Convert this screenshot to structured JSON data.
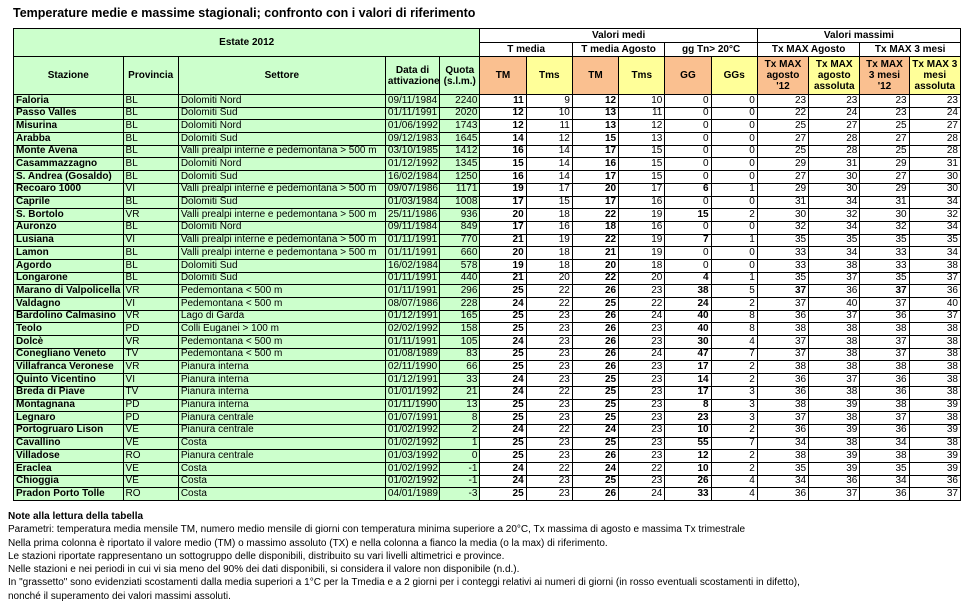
{
  "title": "Temperature medie e massime stagionali; confronto con i valori di riferimento",
  "colors": {
    "header_green": "#ccffcc",
    "header_orange": "#fac090",
    "header_yellow": "#ffff99",
    "border": "#000000"
  },
  "table": {
    "season_header": "Estate 2012",
    "groups": [
      "Valori medi",
      "Valori massimi"
    ],
    "subgroups": [
      "T media",
      "T media Agosto",
      "gg Tn> 20°C",
      "Tx MAX Agosto",
      "Tx MAX 3 mesi"
    ],
    "info_columns": [
      "Stazione",
      "Provincia",
      "Settore",
      "Data di attivazione",
      "Quota (s.l.m.)"
    ],
    "value_columns": [
      "TM",
      "Tms",
      "TM",
      "Tms",
      "GG",
      "GGs",
      "Tx MAX agosto '12",
      "Tx MAX agosto assoluta",
      "Tx MAX 3 mesi '12",
      "Tx MAX 3 mesi assoluta"
    ],
    "rows": [
      {
        "stazione": "Faloria",
        "provincia": "BL",
        "settore": "Dolomiti Nord",
        "data_attivazione": "09/11/1984",
        "quota": "2240",
        "values": [
          11,
          9,
          12,
          10,
          0,
          0,
          23,
          23,
          23,
          23
        ]
      },
      {
        "stazione": "Passo Valles",
        "provincia": "BL",
        "settore": "Dolomiti Sud",
        "data_attivazione": "01/11/1991",
        "quota": "2020",
        "values": [
          12,
          10,
          13,
          11,
          0,
          0,
          22,
          24,
          23,
          24
        ]
      },
      {
        "stazione": "Misurina",
        "provincia": "BL",
        "settore": "Dolomiti Nord",
        "data_attivazione": "01/06/1992",
        "quota": "1743",
        "values": [
          12,
          11,
          13,
          12,
          0,
          0,
          25,
          27,
          25,
          27
        ]
      },
      {
        "stazione": "Arabba",
        "provincia": "BL",
        "settore": "Dolomiti Sud",
        "data_attivazione": "09/12/1983",
        "quota": "1645",
        "values": [
          14,
          12,
          15,
          13,
          0,
          0,
          27,
          28,
          27,
          28
        ]
      },
      {
        "stazione": "Monte Avena",
        "provincia": "BL",
        "settore": "Valli prealpi interne e pedemontana > 500 m",
        "data_attivazione": "03/10/1985",
        "quota": "1412",
        "values": [
          16,
          14,
          17,
          15,
          0,
          0,
          25,
          28,
          25,
          28
        ]
      },
      {
        "stazione": "Casammazzagno",
        "provincia": "BL",
        "settore": "Dolomiti Nord",
        "data_attivazione": "01/12/1992",
        "quota": "1345",
        "values": [
          15,
          14,
          16,
          15,
          0,
          0,
          29,
          31,
          29,
          31
        ]
      },
      {
        "stazione": "S. Andrea (Gosaldo)",
        "provincia": "BL",
        "settore": "Dolomiti Sud",
        "data_attivazione": "16/02/1984",
        "quota": "1250",
        "values": [
          16,
          14,
          17,
          15,
          0,
          0,
          27,
          30,
          27,
          30
        ]
      },
      {
        "stazione": "Recoaro 1000",
        "provincia": "VI",
        "settore": "Valli prealpi interne e pedemontana > 500 m",
        "data_attivazione": "09/07/1986",
        "quota": "1171",
        "values": [
          19,
          17,
          20,
          17,
          6,
          1,
          29,
          30,
          29,
          30
        ]
      },
      {
        "stazione": "Caprile",
        "provincia": "BL",
        "settore": "Dolomiti Sud",
        "data_attivazione": "01/03/1984",
        "quota": "1008",
        "values": [
          17,
          15,
          17,
          16,
          0,
          0,
          31,
          34,
          31,
          34
        ]
      },
      {
        "stazione": "S. Bortolo",
        "provincia": "VR",
        "settore": "Valli prealpi interne e pedemontana > 500 m",
        "data_attivazione": "25/11/1986",
        "quota": "936",
        "values": [
          20,
          18,
          22,
          19,
          15,
          2,
          30,
          32,
          30,
          32
        ]
      },
      {
        "stazione": "Auronzo",
        "provincia": "BL",
        "settore": "Dolomiti Nord",
        "data_attivazione": "09/11/1984",
        "quota": "849",
        "values": [
          17,
          16,
          18,
          16,
          0,
          0,
          32,
          34,
          32,
          34
        ]
      },
      {
        "stazione": "Lusiana",
        "provincia": "VI",
        "settore": "Valli prealpi interne e pedemontana > 500 m",
        "data_attivazione": "01/11/1991",
        "quota": "770",
        "values": [
          21,
          19,
          22,
          19,
          7,
          1,
          35,
          35,
          35,
          35
        ]
      },
      {
        "stazione": "Lamon",
        "provincia": "BL",
        "settore": "Valli prealpi interne e pedemontana > 500 m",
        "data_attivazione": "01/11/1991",
        "quota": "660",
        "values": [
          20,
          18,
          21,
          19,
          0,
          0,
          33,
          34,
          33,
          34
        ]
      },
      {
        "stazione": "Agordo",
        "provincia": "BL",
        "settore": "Dolomiti Sud",
        "data_attivazione": "16/02/1984",
        "quota": "578",
        "values": [
          19,
          18,
          20,
          18,
          0,
          0,
          33,
          38,
          33,
          38
        ]
      },
      {
        "stazione": "Longarone",
        "provincia": "BL",
        "settore": "Dolomiti Sud",
        "data_attivazione": "01/11/1991",
        "quota": "440",
        "values": [
          21,
          20,
          22,
          20,
          4,
          1,
          35,
          37,
          35,
          37
        ]
      },
      {
        "stazione": "Marano di Valpolicella",
        "provincia": "VR",
        "settore": "Pedemontana < 500 m",
        "data_attivazione": "01/11/1991",
        "quota": "296",
        "values": [
          25,
          22,
          26,
          23,
          38,
          5,
          37,
          36,
          37,
          36
        ]
      },
      {
        "stazione": "Valdagno",
        "provincia": "VI",
        "settore": "Pedemontana < 500 m",
        "data_attivazione": "08/07/1986",
        "quota": "228",
        "values": [
          24,
          22,
          25,
          22,
          24,
          2,
          37,
          40,
          37,
          40
        ]
      },
      {
        "stazione": "Bardolino Calmasino",
        "provincia": "VR",
        "settore": "Lago di Garda",
        "data_attivazione": "01/12/1991",
        "quota": "165",
        "values": [
          25,
          23,
          26,
          24,
          40,
          8,
          36,
          37,
          36,
          37
        ]
      },
      {
        "stazione": "Teolo",
        "provincia": "PD",
        "settore": "Colli Euganei > 100 m",
        "data_attivazione": "02/02/1992",
        "quota": "158",
        "values": [
          25,
          23,
          26,
          23,
          40,
          8,
          38,
          38,
          38,
          38
        ]
      },
      {
        "stazione": "Dolcè",
        "provincia": "VR",
        "settore": "Pedemontana < 500 m",
        "data_attivazione": "01/11/1991",
        "quota": "105",
        "values": [
          24,
          23,
          26,
          23,
          30,
          4,
          37,
          38,
          37,
          38
        ]
      },
      {
        "stazione": "Conegliano Veneto",
        "provincia": "TV",
        "settore": "Pedemontana < 500 m",
        "data_attivazione": "01/08/1989",
        "quota": "83",
        "values": [
          25,
          23,
          26,
          24,
          47,
          7,
          37,
          38,
          37,
          38
        ]
      },
      {
        "stazione": "Villafranca Veronese",
        "provincia": "VR",
        "settore": "Pianura interna",
        "data_attivazione": "02/11/1990",
        "quota": "66",
        "values": [
          25,
          23,
          26,
          23,
          17,
          2,
          38,
          38,
          38,
          38
        ]
      },
      {
        "stazione": "Quinto Vicentino",
        "provincia": "VI",
        "settore": "Pianura interna",
        "data_attivazione": "01/12/1991",
        "quota": "33",
        "values": [
          24,
          23,
          25,
          23,
          14,
          2,
          36,
          37,
          36,
          38
        ]
      },
      {
        "stazione": "Breda di Piave",
        "provincia": "TV",
        "settore": "Pianura interna",
        "data_attivazione": "01/01/1992",
        "quota": "21",
        "values": [
          24,
          22,
          25,
          23,
          17,
          3,
          36,
          38,
          36,
          38
        ]
      },
      {
        "stazione": "Montagnana",
        "provincia": "PD",
        "settore": "Pianura interna",
        "data_attivazione": "01/11/1990",
        "quota": "13",
        "values": [
          25,
          23,
          25,
          23,
          8,
          3,
          38,
          39,
          38,
          39
        ]
      },
      {
        "stazione": "Legnaro",
        "provincia": "PD",
        "settore": "Pianura centrale",
        "data_attivazione": "01/07/1991",
        "quota": "8",
        "values": [
          25,
          23,
          25,
          23,
          23,
          3,
          37,
          38,
          37,
          38
        ]
      },
      {
        "stazione": "Portogruaro Lison",
        "provincia": "VE",
        "settore": "Pianura centrale",
        "data_attivazione": "01/02/1992",
        "quota": "2",
        "values": [
          24,
          22,
          24,
          23,
          10,
          2,
          36,
          39,
          36,
          39
        ]
      },
      {
        "stazione": "Cavallino",
        "provincia": "VE",
        "settore": "Costa",
        "data_attivazione": "01/02/1992",
        "quota": "1",
        "values": [
          25,
          23,
          25,
          23,
          55,
          7,
          34,
          38,
          34,
          38
        ]
      },
      {
        "stazione": "Villadose",
        "provincia": "RO",
        "settore": "Pianura centrale",
        "data_attivazione": "01/03/1992",
        "quota": "0",
        "values": [
          25,
          23,
          26,
          23,
          12,
          2,
          38,
          39,
          38,
          39
        ]
      },
      {
        "stazione": "Eraclea",
        "provincia": "VE",
        "settore": "Costa",
        "data_attivazione": "01/02/1992",
        "quota": "-1",
        "values": [
          24,
          22,
          24,
          22,
          10,
          2,
          35,
          39,
          35,
          39
        ]
      },
      {
        "stazione": "Chioggia",
        "provincia": "VE",
        "settore": "Costa",
        "data_attivazione": "01/02/1992",
        "quota": "-1",
        "values": [
          24,
          23,
          25,
          23,
          26,
          4,
          34,
          36,
          34,
          36
        ]
      },
      {
        "stazione": "Pradon Porto Tolle",
        "provincia": "RO",
        "settore": "Costa",
        "data_attivazione": "04/01/1989",
        "quota": "-3",
        "values": [
          25,
          23,
          26,
          24,
          33,
          4,
          36,
          37,
          36,
          37
        ]
      }
    ]
  },
  "notes": {
    "title": "Note alla lettura della tabella",
    "lines": [
      "Parametri: temperatura media mensile TM, numero medio mensile di giorni con temperatura minima superiore a 20°C, Tx massima di agosto e massima Tx trimestrale",
      "Nella prima colonna è riportato il valore medio (TM) o massimo assoluto (TX) e nella colonna a fianco la media (o la max) di riferimento.",
      "Le stazioni riportate rappresentano un sottogruppo delle disponibili, distribuito su vari livelli altimetrici e province.",
      "Nelle stazioni e nei periodi in cui vi sia meno del 90% dei dati disponibili, si considera il valore non disponibile (n.d.).",
      "In \"grassetto\" sono evidenziati scostamenti dalla media superiori a 1°C per la Tmedia e a 2 giorni per i conteggi relativi ai numeri di giorni (in rosso eventuali scostamenti in difetto),",
      "nonché il superamento dei valori massimi assoluti."
    ]
  }
}
